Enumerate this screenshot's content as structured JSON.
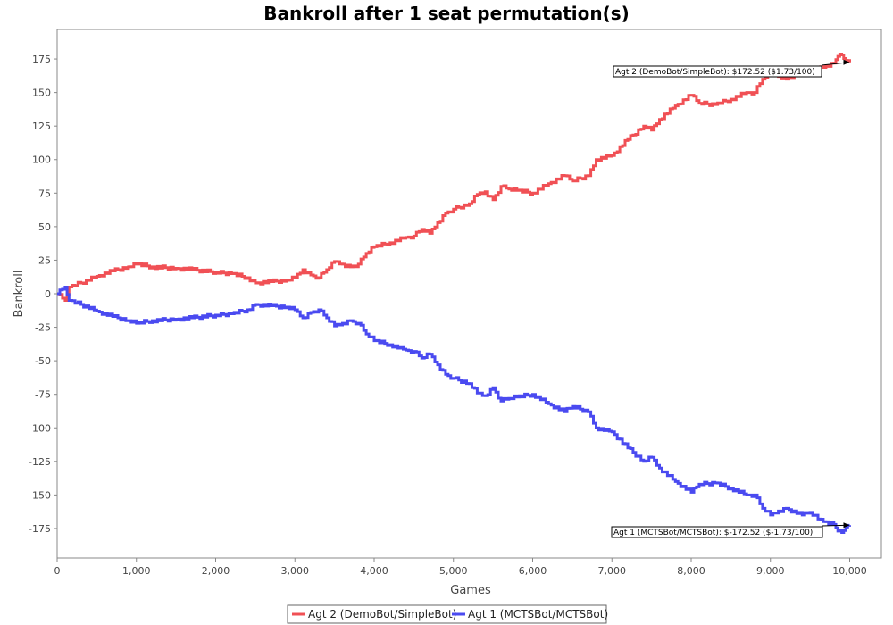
{
  "chart_data": {
    "type": "line",
    "title": "Bankroll after 1 seat permutation(s)",
    "xlabel": "Games",
    "ylabel": "Bankroll",
    "xlim": [
      0,
      10400
    ],
    "ylim": [
      -197,
      197
    ],
    "xticks": [
      0,
      1000,
      2000,
      3000,
      4000,
      5000,
      6000,
      7000,
      8000,
      9000,
      10000
    ],
    "xtick_labels": [
      "0",
      "1,000",
      "2,000",
      "3,000",
      "4,000",
      "5,000",
      "6,000",
      "7,000",
      "8,000",
      "9,000",
      "10,000"
    ],
    "yticks": [
      175,
      150,
      125,
      100,
      75,
      50,
      25,
      0,
      -25,
      -50,
      -75,
      -100,
      -125,
      -150,
      -175
    ],
    "ytick_labels": [
      "175",
      "150",
      "125",
      "100",
      "75",
      "50",
      "25",
      "0",
      "-25",
      "-50",
      "-75",
      "-100",
      "-125",
      "-150",
      "-175"
    ],
    "grid": false,
    "legend_position": "bottom-center",
    "series": [
      {
        "name": "Agt 2 (DemoBot/SimpleBot)",
        "color": "#f05055",
        "x": [
          0,
          100,
          150,
          300,
          500,
          700,
          900,
          1000,
          1200,
          1500,
          1700,
          2000,
          2200,
          2400,
          2500,
          2700,
          2900,
          3000,
          3100,
          3200,
          3300,
          3400,
          3500,
          3600,
          3700,
          3800,
          3900,
          4000,
          4200,
          4400,
          4500,
          4600,
          4700,
          4800,
          4900,
          5000,
          5200,
          5300,
          5400,
          5500,
          5600,
          5700,
          5800,
          6000,
          6200,
          6400,
          6500,
          6700,
          6800,
          7000,
          7200,
          7400,
          7500,
          7600,
          7800,
          8000,
          8100,
          8300,
          8500,
          8700,
          8800,
          8900,
          9000,
          9100,
          9200,
          9400,
          9500,
          9600,
          9700,
          9800,
          9850,
          9900,
          9950,
          10000
        ],
        "y": [
          0,
          -5,
          5,
          8,
          13,
          17,
          20,
          22,
          20,
          19,
          18,
          16,
          15,
          12,
          8,
          9,
          10,
          12,
          18,
          14,
          12,
          18,
          24,
          22,
          20,
          22,
          30,
          35,
          38,
          42,
          43,
          48,
          45,
          53,
          60,
          63,
          67,
          74,
          76,
          70,
          80,
          78,
          77,
          75,
          82,
          88,
          84,
          88,
          100,
          103,
          115,
          125,
          122,
          130,
          140,
          148,
          142,
          141,
          145,
          150,
          150,
          160,
          165,
          162,
          160,
          165,
          163,
          168,
          170,
          172,
          177,
          178,
          174,
          172.52
        ]
      },
      {
        "name": "Agt 1 (MCTSBot/MCTSBot)",
        "color": "#4a4af0",
        "x": [
          0,
          100,
          150,
          300,
          500,
          700,
          900,
          1000,
          1200,
          1500,
          1700,
          2000,
          2200,
          2400,
          2500,
          2700,
          2900,
          3000,
          3100,
          3200,
          3300,
          3400,
          3500,
          3600,
          3700,
          3800,
          3900,
          4000,
          4200,
          4400,
          4500,
          4600,
          4700,
          4800,
          4900,
          5000,
          5200,
          5300,
          5400,
          5500,
          5600,
          5700,
          5800,
          6000,
          6200,
          6400,
          6500,
          6700,
          6800,
          7000,
          7200,
          7400,
          7500,
          7600,
          7800,
          8000,
          8100,
          8300,
          8500,
          8700,
          8800,
          8900,
          9000,
          9100,
          9200,
          9400,
          9500,
          9600,
          9700,
          9800,
          9850,
          9900,
          9950,
          10000
        ],
        "y": [
          0,
          5,
          -5,
          -8,
          -13,
          -17,
          -20,
          -22,
          -20,
          -19,
          -18,
          -16,
          -15,
          -12,
          -8,
          -9,
          -10,
          -12,
          -18,
          -14,
          -12,
          -18,
          -24,
          -22,
          -20,
          -22,
          -30,
          -35,
          -38,
          -42,
          -43,
          -48,
          -45,
          -53,
          -60,
          -63,
          -67,
          -74,
          -76,
          -70,
          -80,
          -78,
          -77,
          -75,
          -82,
          -88,
          -84,
          -88,
          -100,
          -103,
          -115,
          -125,
          -122,
          -130,
          -140,
          -148,
          -142,
          -141,
          -145,
          -150,
          -150,
          -160,
          -165,
          -162,
          -160,
          -165,
          -163,
          -168,
          -170,
          -172,
          -177,
          -178,
          -174,
          -172.52
        ]
      }
    ],
    "annotations": [
      {
        "series": 0,
        "text": "Agt 2 (DemoBot/SimpleBot): $172.52 ($1.73/100)",
        "x": 10000,
        "y": 172.52
      },
      {
        "series": 1,
        "text": "Agt 1 (MCTSBot/MCTSBot): $-172.52 ($-1.73/100)",
        "x": 10000,
        "y": -172.52
      }
    ]
  }
}
